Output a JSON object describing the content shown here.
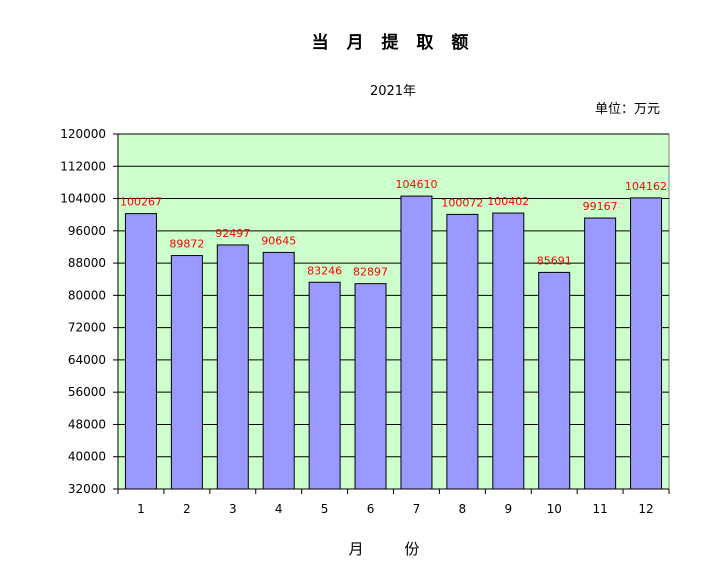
{
  "chart_data": {
    "type": "bar",
    "title": "当 月 提 取 额",
    "subtitle": "2021年",
    "unit": "单位：万元",
    "xlabel": "月  份",
    "ylabel": "",
    "categories": [
      "1",
      "2",
      "3",
      "4",
      "5",
      "6",
      "7",
      "8",
      "9",
      "10",
      "11",
      "12"
    ],
    "values": [
      100267,
      89872,
      92497,
      90645,
      83246,
      82897,
      104610,
      100072,
      100402,
      85691,
      99167,
      104162
    ],
    "ylim": [
      32000,
      120000
    ],
    "yticks": [
      32000,
      40000,
      48000,
      56000,
      64000,
      72000,
      80000,
      88000,
      96000,
      104000,
      112000,
      120000
    ],
    "grid": true,
    "legend": "none",
    "colors": {
      "bar": "#9999ff",
      "bar_border": "#000000",
      "plot_background": "#ccffcc",
      "data_label": "#ff0000"
    }
  }
}
